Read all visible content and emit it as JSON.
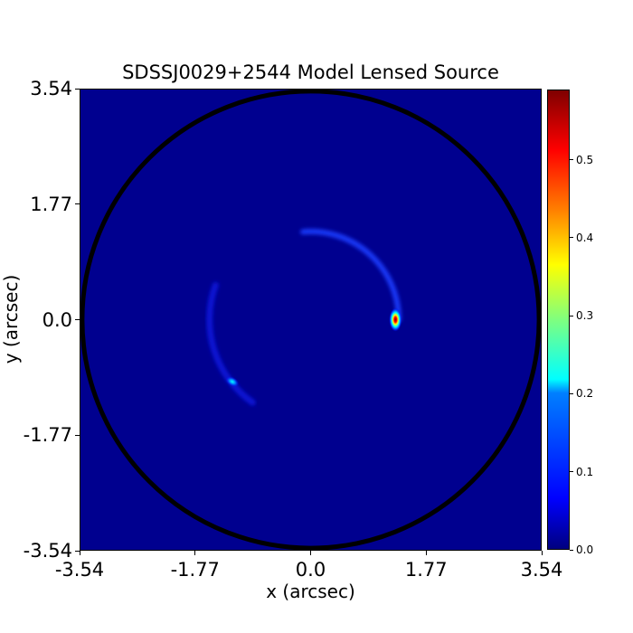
{
  "chart_data": {
    "type": "heatmap",
    "title": "SDSSJ0029+2544 Model Lensed Source",
    "xlabel": "x (arcsec)",
    "ylabel": "y (arcsec)",
    "xlim": [
      -3.54,
      3.54
    ],
    "ylim": [
      -3.54,
      3.54
    ],
    "x_ticks": [
      "-3.54",
      "-1.77",
      "0.0",
      "1.77",
      "3.54"
    ],
    "x_tick_values": [
      -3.54,
      -1.77,
      0.0,
      1.77,
      3.54
    ],
    "y_ticks": [
      "3.54",
      "1.77",
      "0.0",
      "-1.77",
      "-3.54"
    ],
    "y_tick_values": [
      3.54,
      1.77,
      0.0,
      -1.77,
      -3.54
    ],
    "colormap": "jet",
    "colorbar": {
      "range": [
        0.0,
        0.59
      ],
      "ticks": [
        "0.0",
        "0.1",
        "0.2",
        "0.3",
        "0.4",
        "0.5"
      ],
      "tick_values": [
        0.0,
        0.1,
        0.2,
        0.3,
        0.4,
        0.5
      ]
    },
    "mask_circle": {
      "center": [
        0.0,
        0.0
      ],
      "radius": 3.5
    },
    "features": [
      {
        "name": "bright-knot-east",
        "x": 1.3,
        "y": 0.0,
        "peak": 0.59
      },
      {
        "name": "knot-southwest",
        "x": -1.2,
        "y": -0.95,
        "peak": 0.15
      },
      {
        "name": "arc-north-east",
        "center": [
          0.0,
          0.0
        ],
        "radius": 1.35,
        "theta_start": 0,
        "theta_end": 95,
        "peak": 0.1
      },
      {
        "name": "arc-west",
        "center": [
          0.0,
          0.0
        ],
        "radius": 1.55,
        "theta_start": 160,
        "theta_end": 235,
        "peak": 0.05
      }
    ]
  }
}
